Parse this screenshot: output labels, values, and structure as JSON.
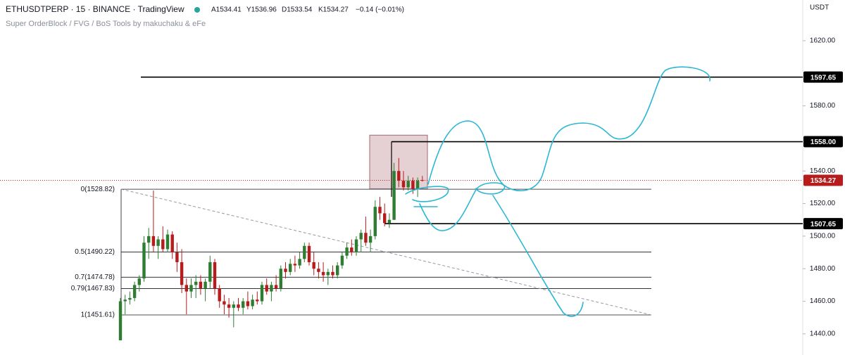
{
  "header": {
    "symbol": "ETHUSDTPERP · 15 · BINANCE · TradingView",
    "open": "A1534.41",
    "high": "Y1536.96",
    "low": "D1533.54",
    "close": "K1534.27",
    "change": "−0.14 (−0.01%)",
    "indicator": "Super OrderBlock / FVG / BoS Tools by makuchaku & eFe",
    "currency": "USDT"
  },
  "chart_data": {
    "type": "candlestick",
    "up_color": "#2e7d32",
    "down_color": "#b71c1c",
    "ylim": [
      1427,
      1645
    ],
    "yticks": [
      {
        "value": 1440,
        "label": "1440.00"
      },
      {
        "value": 1460,
        "label": "1460.00"
      },
      {
        "value": 1480,
        "label": "1480.00"
      },
      {
        "value": 1500,
        "label": "1500.00"
      },
      {
        "value": 1520,
        "label": "1520.00"
      },
      {
        "value": 1540,
        "label": "1540.00"
      },
      {
        "value": 1580,
        "label": "1580.00"
      },
      {
        "value": 1620,
        "label": "1620.00"
      }
    ],
    "open": [
      1436,
      1460,
      1461,
      1462,
      1470,
      1474,
      1496,
      1500,
      1494,
      1498,
      1492,
      1501,
      1490,
      1484,
      1470,
      1466,
      1470,
      1472,
      1468,
      1472,
      1484,
      1468,
      1460,
      1458,
      1456,
      1458,
      1456,
      1460,
      1457,
      1461,
      1460,
      1470,
      1466,
      1470,
      1468,
      1480,
      1478,
      1483,
      1482,
      1486,
      1494,
      1484,
      1480,
      1478,
      1476,
      1478,
      1476,
      1482,
      1488,
      1493,
      1490,
      1498,
      1502,
      1496,
      1500,
      1518,
      1514,
      1508,
      1510,
      1540,
      1534,
      1530,
      1534,
      1529,
      1534.41
    ],
    "high": [
      1462,
      1464,
      1466,
      1472,
      1476,
      1500,
      1505,
      1528,
      1500,
      1506,
      1504,
      1503,
      1496,
      1492,
      1474,
      1474,
      1476,
      1476,
      1474,
      1488,
      1486,
      1470,
      1464,
      1462,
      1460,
      1462,
      1462,
      1466,
      1464,
      1466,
      1472,
      1474,
      1472,
      1476,
      1482,
      1484,
      1486,
      1488,
      1490,
      1496,
      1496,
      1490,
      1484,
      1484,
      1480,
      1482,
      1484,
      1490,
      1496,
      1498,
      1500,
      1504,
      1512,
      1504,
      1522,
      1524,
      1520,
      1514,
      1545,
      1548,
      1540,
      1537,
      1536,
      1536,
      1536.96
    ],
    "low": [
      1436,
      1452,
      1458,
      1460,
      1466,
      1472,
      1486,
      1490,
      1486,
      1490,
      1490,
      1486,
      1478,
      1465,
      1452,
      1462,
      1462,
      1464,
      1460,
      1468,
      1464,
      1456,
      1452,
      1450,
      1444,
      1454,
      1452,
      1455,
      1455,
      1458,
      1458,
      1464,
      1460,
      1466,
      1466,
      1474,
      1476,
      1478,
      1480,
      1484,
      1482,
      1476,
      1474,
      1472,
      1470,
      1474,
      1474,
      1480,
      1486,
      1488,
      1488,
      1490,
      1494,
      1490,
      1498,
      1510,
      1506,
      1505,
      1510,
      1530,
      1528,
      1528,
      1526,
      1524,
      1533.54
    ],
    "close": [
      1460,
      1461,
      1462,
      1470,
      1474,
      1496,
      1500,
      1494,
      1498,
      1492,
      1501,
      1490,
      1484,
      1470,
      1466,
      1470,
      1472,
      1468,
      1472,
      1484,
      1468,
      1460,
      1458,
      1456,
      1458,
      1456,
      1460,
      1457,
      1461,
      1460,
      1470,
      1466,
      1470,
      1468,
      1480,
      1478,
      1483,
      1482,
      1486,
      1494,
      1484,
      1480,
      1478,
      1476,
      1478,
      1476,
      1482,
      1488,
      1493,
      1490,
      1498,
      1502,
      1496,
      1500,
      1518,
      1514,
      1508,
      1510,
      1540,
      1534,
      1530,
      1534,
      1529,
      1534,
      1534.27
    ],
    "last_price": {
      "value": 1534.27,
      "label": "1534.27"
    },
    "levels": [
      {
        "value": 1597.65,
        "label": "1597.65"
      },
      {
        "value": 1558,
        "label": "1558.00"
      },
      {
        "value": 1507.65,
        "label": "1507.65"
      }
    ],
    "fib_levels": [
      {
        "value": 1528.82,
        "label": "0(1528.82)"
      },
      {
        "value": 1490.22,
        "label": "0.5(1490.22)"
      },
      {
        "value": 1474.78,
        "label": "0.7(1474.78)"
      },
      {
        "value": 1467.83,
        "label": "0.79(1467.83)"
      },
      {
        "value": 1451.61,
        "label": "1(1451.61)"
      }
    ],
    "order_block": {
      "top": 1562,
      "bottom": 1529
    }
  }
}
